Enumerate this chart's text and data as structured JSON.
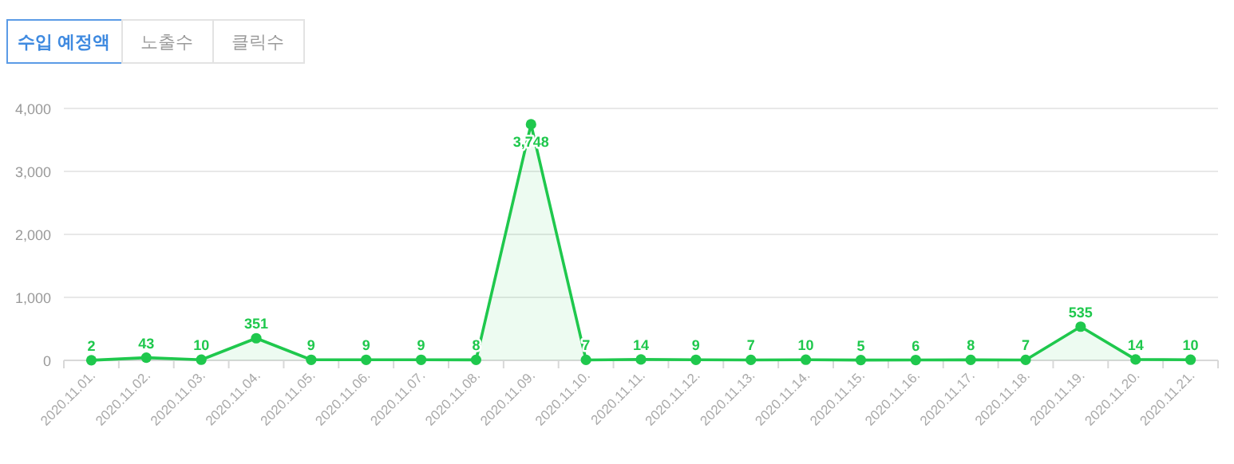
{
  "chart_data": {
    "type": "area",
    "annotations": [
      "수입 예정액",
      "노출수",
      "클릭수"
    ],
    "categories": [
      "2020.11.01.",
      "2020.11.02.",
      "2020.11.03.",
      "2020.11.04.",
      "2020.11.05.",
      "2020.11.06.",
      "2020.11.07.",
      "2020.11.08.",
      "2020.11.09.",
      "2020.11.10.",
      "2020.11.11.",
      "2020.11.12.",
      "2020.11.13.",
      "2020.11.14.",
      "2020.11.15.",
      "2020.11.16.",
      "2020.11.17.",
      "2020.11.18.",
      "2020.11.19.",
      "2020.11.20.",
      "2020.11.21."
    ],
    "series": [
      {
        "color": "#1fc84d",
        "values": [
          2,
          43,
          10,
          351,
          9,
          9,
          9,
          8,
          3748,
          7,
          14,
          9,
          7,
          10,
          5,
          6,
          8,
          7,
          535,
          14,
          10
        ]
      }
    ],
    "ylim": [
      0,
      4000
    ],
    "yticks": [
      {
        "value": 0,
        "label": "0"
      },
      {
        "value": 1000,
        "label": "1,000"
      },
      {
        "value": 2000,
        "label": "2,000"
      },
      {
        "value": 3000,
        "label": "3,000"
      },
      {
        "value": 4000,
        "label": "4,000"
      }
    ],
    "value_labels": [
      "2",
      "43",
      "10",
      "351",
      "9",
      "9",
      "9",
      "8",
      "3,748",
      "7",
      "14",
      "9",
      "7",
      "10",
      "5",
      "6",
      "8",
      "7",
      "535",
      "14",
      "10"
    ],
    "grid": "y",
    "marker": "circle",
    "line_style": "solid"
  }
}
